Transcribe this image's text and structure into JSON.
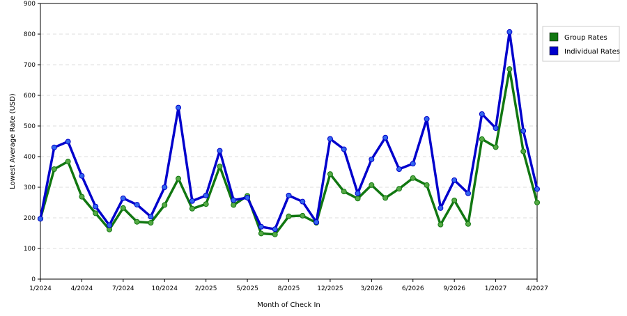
{
  "chart_data": {
    "type": "line",
    "xlabel": "Month of Check In",
    "ylabel": "Lowest Average Rate (USD)",
    "ylim": [
      0,
      900
    ],
    "y_ticks": [
      0,
      100,
      200,
      300,
      400,
      500,
      600,
      700,
      800,
      900
    ],
    "x_tick_labels": [
      "1/2024",
      "4/2024",
      "7/2024",
      "10/2024",
      "2/2025",
      "5/2025",
      "8/2025",
      "12/2025",
      "3/2026",
      "6/2026",
      "9/2026",
      "1/2027",
      "4/2027"
    ],
    "x_tick_indices": [
      0,
      3,
      6,
      9,
      12,
      15,
      18,
      21,
      24,
      27,
      30,
      33,
      36
    ],
    "grid": "horizontal dashed",
    "legend_placement": "right",
    "series": [
      {
        "name": "Group Rates",
        "color": "#117711",
        "marker_color": "#55aa44",
        "values": [
          197,
          359,
          384,
          269,
          215,
          162,
          232,
          187,
          184,
          242,
          328,
          230,
          245,
          368,
          242,
          272,
          149,
          146,
          205,
          207,
          184,
          343,
          286,
          263,
          307,
          265,
          295,
          330,
          307,
          178,
          257,
          180,
          457,
          431,
          686,
          417,
          250
        ]
      },
      {
        "name": "Individual Rates",
        "color": "#0000cc",
        "marker_color": "#3366ee",
        "values": [
          197,
          430,
          449,
          337,
          237,
          176,
          264,
          243,
          204,
          300,
          560,
          255,
          273,
          419,
          258,
          266,
          171,
          163,
          273,
          253,
          186,
          458,
          424,
          280,
          391,
          462,
          359,
          377,
          523,
          232,
          323,
          280,
          539,
          493,
          807,
          484,
          294
        ]
      }
    ]
  }
}
